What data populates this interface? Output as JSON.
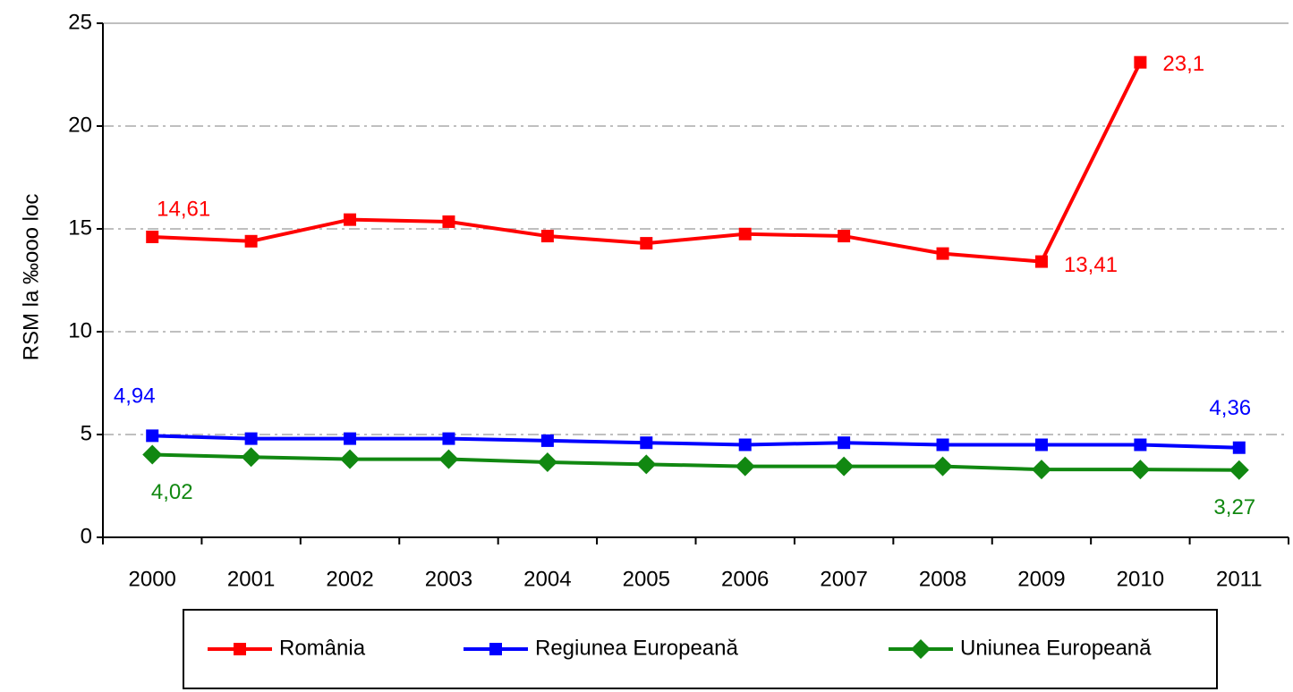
{
  "chart_data": {
    "type": "line",
    "y_label": "RSM la ‰ooo loc",
    "categories": [
      "2000",
      "2001",
      "2002",
      "2003",
      "2004",
      "2005",
      "2006",
      "2007",
      "2008",
      "2009",
      "2010",
      "2011"
    ],
    "series": [
      {
        "name": "România",
        "color": "#ff0000",
        "marker": "square",
        "values": [
          14.61,
          14.4,
          15.45,
          15.35,
          14.65,
          14.3,
          14.75,
          14.65,
          13.8,
          13.41,
          23.1,
          null
        ],
        "value_labels": [
          "14,61",
          null,
          null,
          null,
          null,
          null,
          null,
          null,
          null,
          "13,41",
          "23,1",
          null
        ]
      },
      {
        "name": "Regiunea Europeană",
        "color": "#0000ff",
        "marker": "square",
        "values": [
          4.94,
          4.8,
          4.8,
          4.8,
          4.7,
          4.6,
          4.5,
          4.6,
          4.5,
          4.5,
          4.5,
          4.36
        ],
        "value_labels": [
          "4,94",
          null,
          null,
          null,
          null,
          null,
          null,
          null,
          null,
          null,
          null,
          "4,36"
        ]
      },
      {
        "name": "Uniunea Europeană",
        "color": "#118811",
        "marker": "diamond",
        "values": [
          4.02,
          3.9,
          3.8,
          3.8,
          3.65,
          3.55,
          3.45,
          3.45,
          3.45,
          3.3,
          3.3,
          3.27
        ],
        "value_labels": [
          "4,02",
          null,
          null,
          null,
          null,
          null,
          null,
          null,
          null,
          null,
          null,
          "3,27"
        ]
      }
    ],
    "ylim": [
      0,
      25
    ],
    "yticks": [
      0,
      5,
      10,
      15,
      20,
      25
    ],
    "grid": true,
    "legend": "bottom"
  }
}
